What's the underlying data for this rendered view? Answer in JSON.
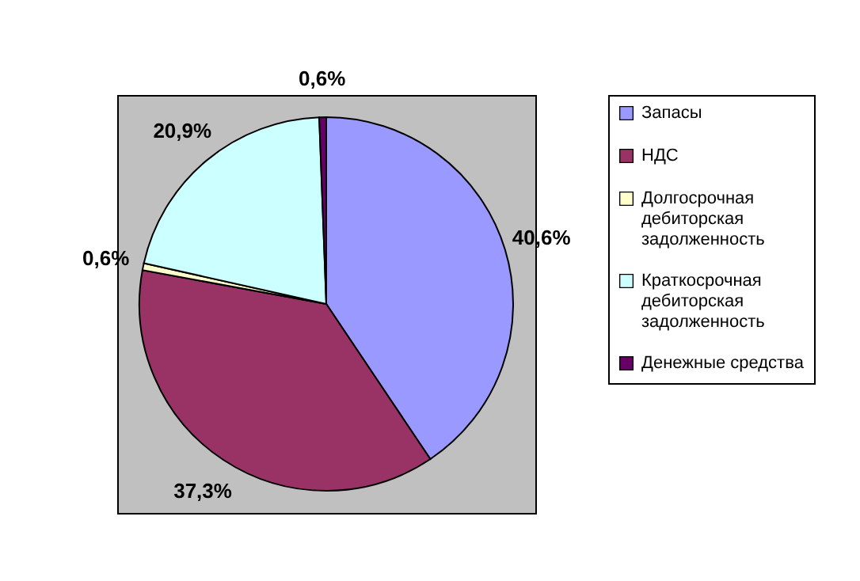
{
  "chart_data": {
    "type": "pie",
    "categories": [
      "Запасы",
      "НДС",
      "Долгосрочная дебиторская задолженность",
      "Краткосрочная дебиторская задолженность",
      "Денежные средства"
    ],
    "values": [
      40.6,
      37.3,
      0.6,
      20.9,
      0.6
    ],
    "colors": [
      "#9999ff",
      "#993366",
      "#ffffcc",
      "#ccffff",
      "#660066"
    ],
    "value_labels": [
      "40,6%",
      "37,3%",
      "0,6%",
      "20,9%",
      "0,6%"
    ],
    "legend": "right"
  }
}
